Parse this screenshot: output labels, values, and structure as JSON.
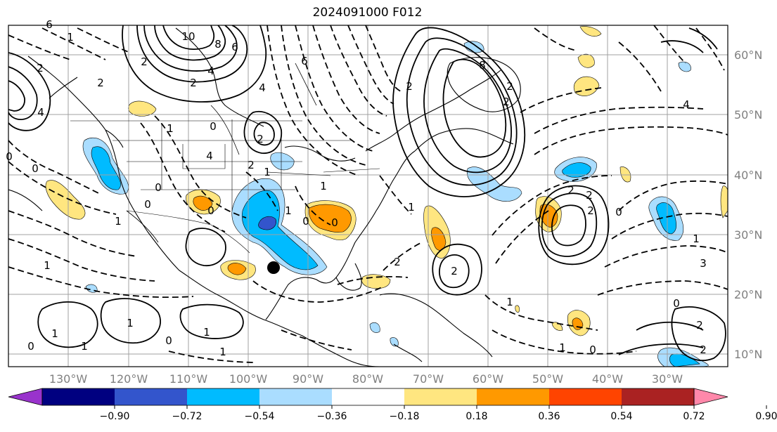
{
  "title": "2024091000 F012",
  "lat_labels": [
    "60°N",
    "50°N",
    "40°N",
    "30°N",
    "20°N",
    "10°N"
  ],
  "lon_labels": [
    "130°W",
    "120°W",
    "110°W",
    "100°W",
    "90°W",
    "80°W",
    "70°W",
    "60°W",
    "50°W",
    "40°W",
    "30°W"
  ],
  "colorbar": {
    "ticks": [
      "−0.90",
      "−0.72",
      "−0.54",
      "−0.36",
      "−0.18",
      "0.18",
      "0.36",
      "0.54",
      "0.72",
      "0.90"
    ],
    "colors": [
      "#9933cc",
      "#000080",
      "#3355cc",
      "#00bbff",
      "#aaddff",
      "#ffffff",
      "#ffe680",
      "#ff9900",
      "#ff4400",
      "#aa2222",
      "#ff88aa"
    ]
  },
  "contour_labels": [
    "10",
    "8",
    "6",
    "4",
    "2",
    "2",
    "4",
    "2",
    "2",
    "2",
    "8",
    "6",
    "2",
    "2",
    "4",
    "1",
    "1",
    "2",
    "2",
    "4",
    "6",
    "0",
    "0",
    "0",
    "0",
    "0",
    "0",
    "0",
    "2",
    "2",
    "2",
    "2",
    "4",
    "2",
    "2",
    "1",
    "1",
    "1",
    "1",
    "1",
    "1",
    "1",
    "1",
    "1",
    "1",
    "1",
    "1",
    "1",
    "2",
    "3",
    "1",
    "0",
    "0",
    "0",
    "0",
    "0",
    "0"
  ]
}
